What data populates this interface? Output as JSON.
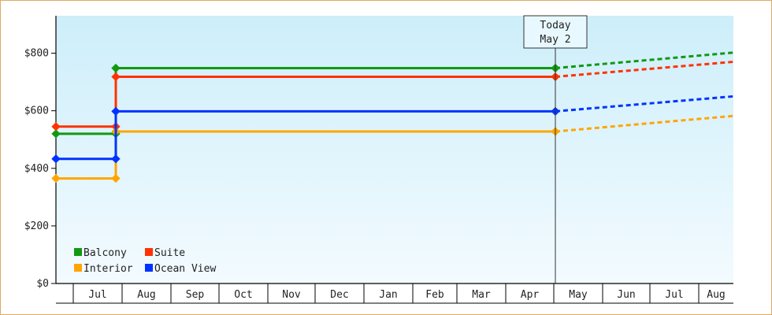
{
  "chart_data": {
    "type": "line",
    "title": "",
    "xlabel": "",
    "ylabel": "",
    "ylim": [
      0,
      930
    ],
    "y_ticks": [
      {
        "value": 0,
        "label": "$0"
      },
      {
        "value": 200,
        "label": "$200"
      },
      {
        "value": 400,
        "label": "$400"
      },
      {
        "value": 600,
        "label": "$600"
      },
      {
        "value": 800,
        "label": "$800"
      }
    ],
    "x_months": [
      "Jul",
      "Aug",
      "Sep",
      "Oct",
      "Nov",
      "Dec",
      "Jan",
      "Feb",
      "Mar",
      "Apr",
      "May",
      "Jun",
      "Jul",
      "Aug"
    ],
    "grid": false,
    "legend_position": "bottom-left",
    "today": {
      "line1": "Today",
      "line2": "May 2"
    },
    "series": [
      {
        "name": "Balcony",
        "color": "#119911",
        "points": [
          [
            "2013-06-01",
            520
          ],
          [
            "2013-07-28",
            520
          ],
          [
            "2013-07-28",
            748
          ],
          [
            "2014-05-02",
            748
          ]
        ],
        "projection": [
          [
            "2014-05-02",
            748
          ],
          [
            "2014-09-01",
            802
          ]
        ]
      },
      {
        "name": "Suite",
        "color": "#ff3300",
        "points": [
          [
            "2013-06-01",
            545
          ],
          [
            "2013-07-28",
            545
          ],
          [
            "2013-07-28",
            718
          ],
          [
            "2014-05-02",
            718
          ]
        ],
        "projection": [
          [
            "2014-05-02",
            718
          ],
          [
            "2014-09-01",
            770
          ]
        ]
      },
      {
        "name": "Interior",
        "color": "#ffa500",
        "points": [
          [
            "2013-06-01",
            365
          ],
          [
            "2013-07-28",
            365
          ],
          [
            "2013-07-28",
            528
          ],
          [
            "2014-05-02",
            528
          ]
        ],
        "projection": [
          [
            "2014-05-02",
            528
          ],
          [
            "2014-09-01",
            582
          ]
        ]
      },
      {
        "name": "Ocean View",
        "color": "#0033ff",
        "points": [
          [
            "2013-06-01",
            433
          ],
          [
            "2013-07-28",
            433
          ],
          [
            "2013-07-28",
            598
          ],
          [
            "2014-05-02",
            598
          ]
        ],
        "projection": [
          [
            "2014-05-02",
            598
          ],
          [
            "2014-09-01",
            650
          ]
        ]
      }
    ]
  },
  "colors": {
    "plot_top": "#cdeefa",
    "plot_bottom": "#f3fbff",
    "frame_border": "#e0a860"
  }
}
